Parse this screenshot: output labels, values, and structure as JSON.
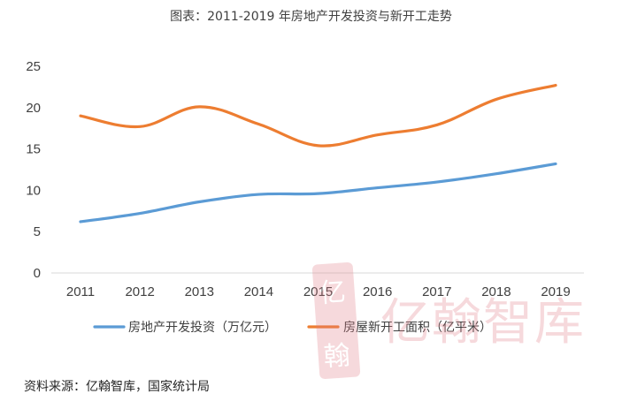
{
  "chart_data": {
    "type": "line",
    "title": "图表：2011-2019 年房地产开发投资与新开工走势",
    "categories": [
      "2011",
      "2012",
      "2013",
      "2014",
      "2015",
      "2016",
      "2017",
      "2018",
      "2019"
    ],
    "ylim": [
      0,
      25
    ],
    "yticks": [
      0,
      5,
      10,
      15,
      20,
      25
    ],
    "grid": false,
    "legend_position": "bottom",
    "series": [
      {
        "name": "房地产开发投资（万亿元）",
        "color": "#5B9BD5",
        "values": [
          6.2,
          7.2,
          8.6,
          9.5,
          9.6,
          10.3,
          11.0,
          12.0,
          13.2
        ]
      },
      {
        "name": "房屋新开工面积（亿平米）",
        "color": "#ED7D31",
        "values": [
          19.0,
          17.7,
          20.1,
          18.0,
          15.4,
          16.7,
          17.9,
          21.0,
          22.7
        ]
      }
    ]
  },
  "source": "资料来源：亿翰智库，国家统计局",
  "watermark": {
    "brand": "亿翰智库",
    "seal_chars": [
      "亿",
      "翰"
    ]
  }
}
